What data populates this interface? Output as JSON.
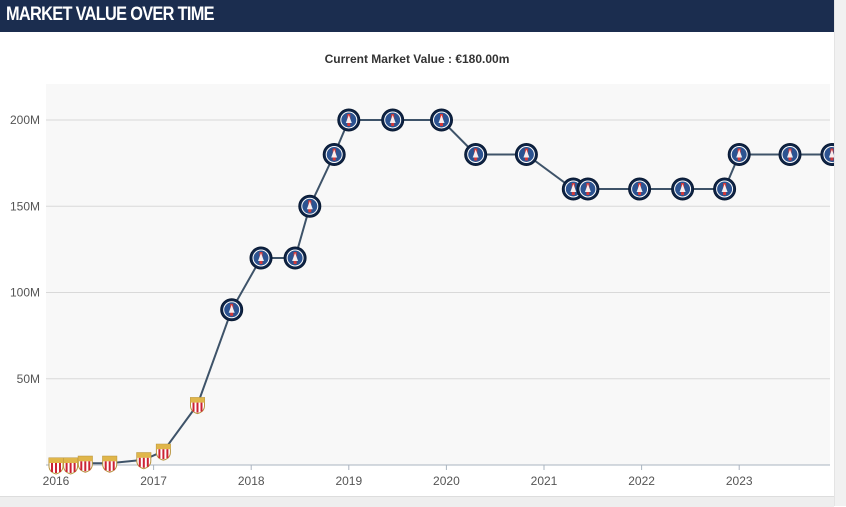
{
  "header": {
    "title": "MARKET VALUE OVER TIME"
  },
  "chart_data": {
    "type": "line",
    "title": "",
    "subtitle": "Current Market Value : €180.00m",
    "xlabel": "",
    "ylabel": "",
    "x_ticks": [
      "2016",
      "2017",
      "2018",
      "2019",
      "2020",
      "2021",
      "2022",
      "2023"
    ],
    "y_ticks": [
      "50M",
      "100M",
      "150M",
      "200M"
    ],
    "xlim": [
      2016.0,
      2023.95
    ],
    "ylim": [
      0,
      200
    ],
    "grid": true,
    "legend": "none",
    "colors": {
      "line": "#3e5369",
      "plot_bg": "#f8f8f8",
      "grid": "#d9d9d9",
      "psg_marker": "#1f3a6b",
      "monaco_marker": "#cc2233"
    },
    "series": [
      {
        "x": [
          2016.0,
          2016.15,
          2016.3,
          2016.55,
          2016.9,
          2017.1,
          2017.45,
          2017.8,
          2018.1,
          2018.45,
          2018.6,
          2018.85,
          2019.0,
          2019.45,
          2019.95,
          2020.3,
          2020.82,
          2021.3,
          2021.45,
          2021.98,
          2022.42,
          2022.85,
          2023.0,
          2023.52,
          2023.95
        ],
        "values": [
          0,
          0,
          1,
          1,
          3,
          8,
          35,
          90,
          120,
          120,
          150,
          180,
          200,
          200,
          200,
          180,
          180,
          160,
          160,
          160,
          160,
          160,
          180,
          180,
          180
        ],
        "club": [
          "monaco",
          "monaco",
          "monaco",
          "monaco",
          "monaco",
          "monaco",
          "monaco",
          "psg",
          "psg",
          "psg",
          "psg",
          "psg",
          "psg",
          "psg",
          "psg",
          "psg",
          "psg",
          "psg",
          "psg",
          "psg",
          "psg",
          "psg",
          "psg",
          "psg",
          "psg"
        ]
      }
    ]
  }
}
